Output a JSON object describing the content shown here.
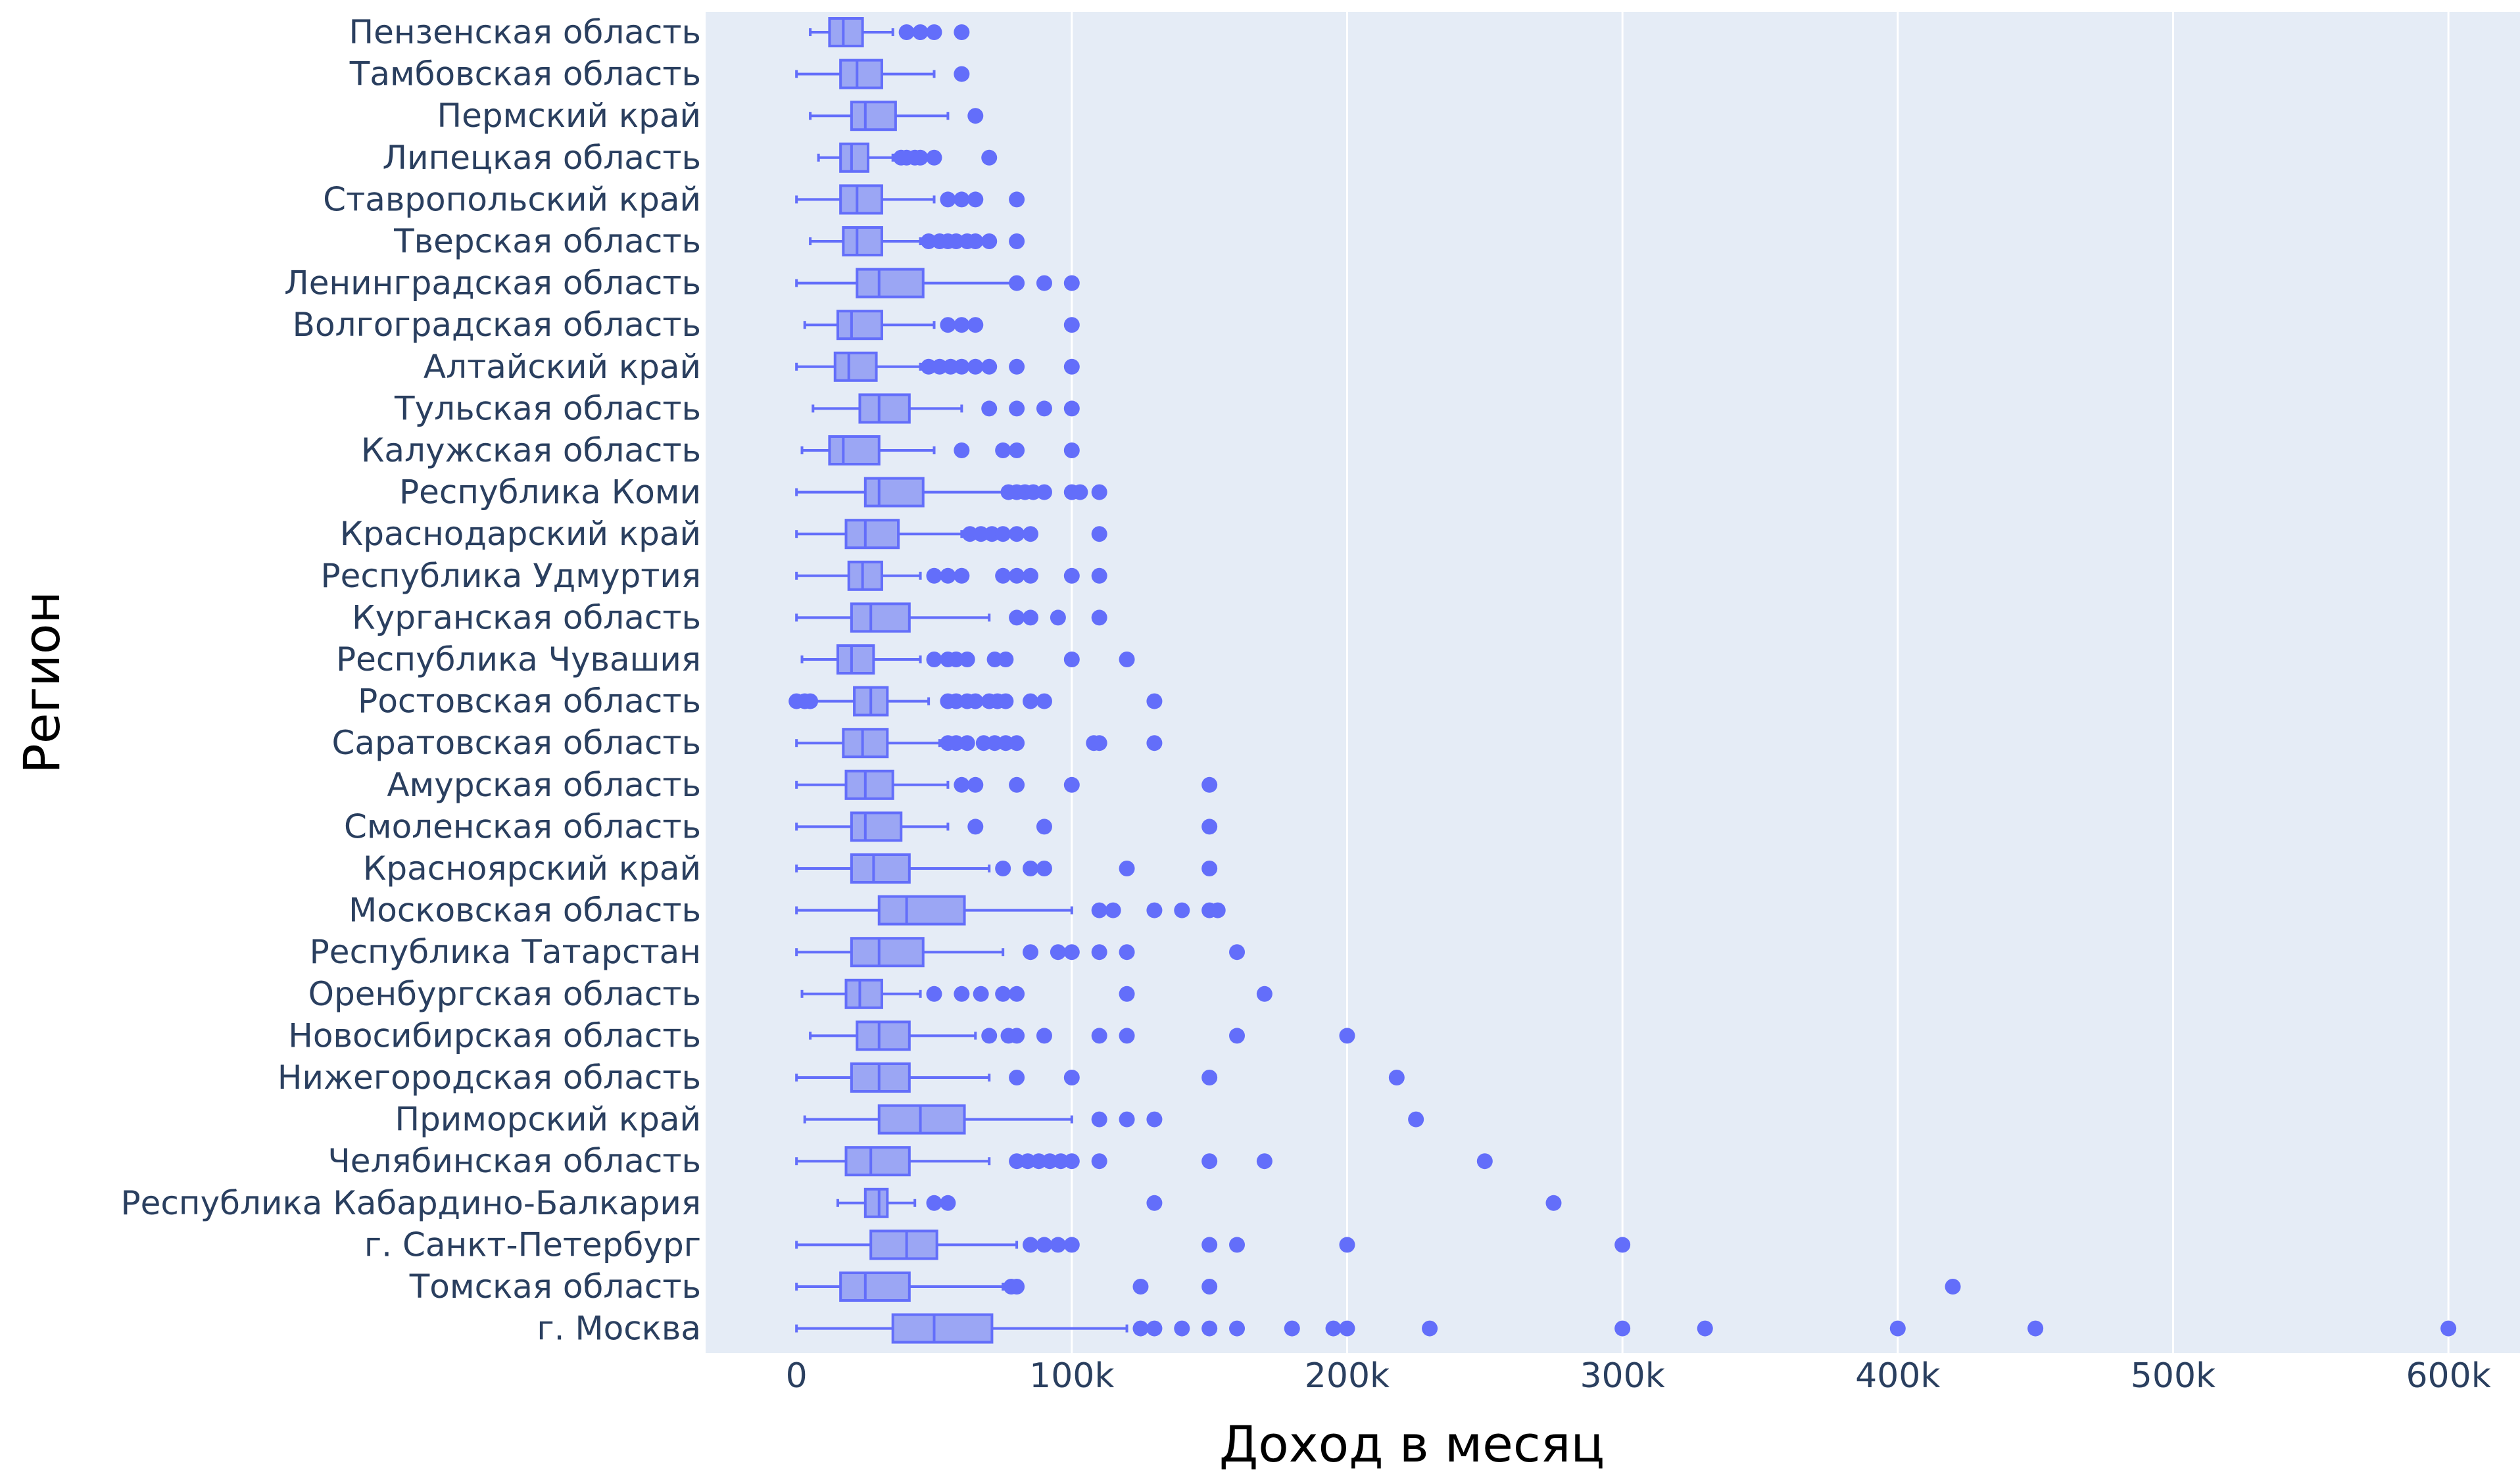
{
  "chart_data": {
    "type": "box",
    "orientation": "horizontal",
    "xlabel": "Доход в месяц",
    "ylabel": "Регион",
    "xlim": [
      -33000,
      626000
    ],
    "xticks": [
      {
        "value": 0,
        "label": "0"
      },
      {
        "value": 100000,
        "label": "100k"
      },
      {
        "value": 200000,
        "label": "200k"
      },
      {
        "value": 300000,
        "label": "300k"
      },
      {
        "value": 400000,
        "label": "400k"
      },
      {
        "value": 500000,
        "label": "500k"
      },
      {
        "value": 600000,
        "label": "600k"
      }
    ],
    "grid": "vertical",
    "colors": {
      "plot_bg": "#e5ecf6",
      "box_fill": "#9ba6f4",
      "box_line": "#636efa",
      "grid": "#ffffff",
      "text": "#2a3f5f"
    },
    "categories": [
      {
        "name": "Пензенская область",
        "lower": 5000,
        "q1": 12000,
        "median": 17000,
        "q3": 24000,
        "upper": 35000,
        "outliers": [
          40000,
          45000,
          50000,
          60000
        ]
      },
      {
        "name": "Тамбовская область",
        "lower": 0,
        "q1": 16000,
        "median": 22000,
        "q3": 31000,
        "upper": 50000,
        "outliers": [
          60000
        ]
      },
      {
        "name": "Пермский край",
        "lower": 5000,
        "q1": 20000,
        "median": 25000,
        "q3": 36000,
        "upper": 55000,
        "outliers": [
          65000
        ]
      },
      {
        "name": "Липецкая область",
        "lower": 8000,
        "q1": 16000,
        "median": 20000,
        "q3": 26000,
        "upper": 35000,
        "outliers": [
          38000,
          40000,
          43000,
          45000,
          50000,
          70000
        ]
      },
      {
        "name": "Ставропольский край",
        "lower": 0,
        "q1": 16000,
        "median": 22000,
        "q3": 31000,
        "upper": 50000,
        "outliers": [
          55000,
          60000,
          65000,
          80000
        ]
      },
      {
        "name": "Тверская область",
        "lower": 5000,
        "q1": 17000,
        "median": 22000,
        "q3": 31000,
        "upper": 45000,
        "outliers": [
          48000,
          52000,
          55000,
          58000,
          62000,
          65000,
          70000,
          80000
        ]
      },
      {
        "name": "Ленинградская область",
        "lower": 0,
        "q1": 22000,
        "median": 30000,
        "q3": 46000,
        "upper": 78000,
        "outliers": [
          80000,
          90000,
          100000
        ]
      },
      {
        "name": "Волгоградская область",
        "lower": 3000,
        "q1": 15000,
        "median": 20000,
        "q3": 31000,
        "upper": 50000,
        "outliers": [
          55000,
          60000,
          65000,
          100000
        ]
      },
      {
        "name": "Алтайский край",
        "lower": 0,
        "q1": 14000,
        "median": 19000,
        "q3": 29000,
        "upper": 45000,
        "outliers": [
          48000,
          52000,
          56000,
          60000,
          65000,
          70000,
          80000,
          100000
        ]
      },
      {
        "name": "Тульская область",
        "lower": 6000,
        "q1": 23000,
        "median": 30000,
        "q3": 41000,
        "upper": 60000,
        "outliers": [
          70000,
          80000,
          90000,
          100000
        ]
      },
      {
        "name": "Калужская область",
        "lower": 2000,
        "q1": 12000,
        "median": 17000,
        "q3": 30000,
        "upper": 50000,
        "outliers": [
          60000,
          75000,
          80000,
          100000
        ]
      },
      {
        "name": "Республика Коми",
        "lower": 0,
        "q1": 25000,
        "median": 30000,
        "q3": 46000,
        "upper": 75000,
        "outliers": [
          77000,
          80000,
          83000,
          86000,
          90000,
          100000,
          103000,
          110000
        ]
      },
      {
        "name": "Краснодарский край",
        "lower": 0,
        "q1": 18000,
        "median": 25000,
        "q3": 37000,
        "upper": 60000,
        "outliers": [
          63000,
          67000,
          71000,
          75000,
          80000,
          85000,
          110000
        ]
      },
      {
        "name": "Республика Удмуртия",
        "lower": 0,
        "q1": 19000,
        "median": 24000,
        "q3": 31000,
        "upper": 45000,
        "outliers": [
          50000,
          55000,
          60000,
          75000,
          80000,
          85000,
          100000,
          110000
        ]
      },
      {
        "name": "Курганская область",
        "lower": 0,
        "q1": 20000,
        "median": 27000,
        "q3": 41000,
        "upper": 70000,
        "outliers": [
          80000,
          85000,
          95000,
          110000
        ]
      },
      {
        "name": "Республика Чувашия",
        "lower": 2000,
        "q1": 15000,
        "median": 20000,
        "q3": 28000,
        "upper": 45000,
        "outliers": [
          50000,
          55000,
          58000,
          62000,
          72000,
          76000,
          100000,
          120000
        ]
      },
      {
        "name": "Ростовская область",
        "lower": 0,
        "q1": 21000,
        "median": 27000,
        "q3": 33000,
        "upper": 48000,
        "outliers": [
          0,
          3000,
          5000,
          55000,
          58000,
          62000,
          65000,
          70000,
          73000,
          76000,
          85000,
          90000,
          130000
        ]
      },
      {
        "name": "Саратовская область",
        "lower": 0,
        "q1": 17000,
        "median": 24000,
        "q3": 33000,
        "upper": 52000,
        "outliers": [
          55000,
          58000,
          62000,
          68000,
          72000,
          76000,
          80000,
          108000,
          110000,
          130000
        ]
      },
      {
        "name": "Амурская область",
        "lower": 0,
        "q1": 18000,
        "median": 25000,
        "q3": 35000,
        "upper": 55000,
        "outliers": [
          60000,
          65000,
          80000,
          100000,
          150000
        ]
      },
      {
        "name": "Смоленская область",
        "lower": 0,
        "q1": 20000,
        "median": 25000,
        "q3": 38000,
        "upper": 55000,
        "outliers": [
          65000,
          90000,
          150000
        ]
      },
      {
        "name": "Красноярский край",
        "lower": 0,
        "q1": 20000,
        "median": 28000,
        "q3": 41000,
        "upper": 70000,
        "outliers": [
          75000,
          85000,
          90000,
          120000,
          150000
        ]
      },
      {
        "name": "Московская область",
        "lower": 0,
        "q1": 30000,
        "median": 40000,
        "q3": 61000,
        "upper": 100000,
        "outliers": [
          110000,
          115000,
          130000,
          140000,
          150000,
          153000
        ]
      },
      {
        "name": "Республика Татарстан",
        "lower": 0,
        "q1": 20000,
        "median": 30000,
        "q3": 46000,
        "upper": 75000,
        "outliers": [
          85000,
          95000,
          100000,
          110000,
          120000,
          160000
        ]
      },
      {
        "name": "Оренбургская область",
        "lower": 2000,
        "q1": 18000,
        "median": 23000,
        "q3": 31000,
        "upper": 45000,
        "outliers": [
          50000,
          60000,
          67000,
          75000,
          80000,
          120000,
          170000
        ]
      },
      {
        "name": "Новосибирская область",
        "lower": 5000,
        "q1": 22000,
        "median": 30000,
        "q3": 41000,
        "upper": 65000,
        "outliers": [
          70000,
          77000,
          80000,
          90000,
          110000,
          120000,
          160000,
          200000
        ]
      },
      {
        "name": "Нижегородская область",
        "lower": 0,
        "q1": 20000,
        "median": 30000,
        "q3": 41000,
        "upper": 70000,
        "outliers": [
          80000,
          100000,
          150000,
          218000
        ]
      },
      {
        "name": "Приморский край",
        "lower": 3000,
        "q1": 30000,
        "median": 45000,
        "q3": 61000,
        "upper": 100000,
        "outliers": [
          110000,
          120000,
          130000,
          225000
        ]
      },
      {
        "name": "Челябинская область",
        "lower": 0,
        "q1": 18000,
        "median": 27000,
        "q3": 41000,
        "upper": 70000,
        "outliers": [
          80000,
          84000,
          88000,
          92000,
          96000,
          100000,
          110000,
          150000,
          170000,
          250000
        ]
      },
      {
        "name": "Республика Кабардино-Балкария",
        "lower": 15000,
        "q1": 25000,
        "median": 30000,
        "q3": 33000,
        "upper": 43000,
        "outliers": [
          50000,
          55000,
          130000,
          275000
        ]
      },
      {
        "name": "г. Санкт-Петербург",
        "lower": 0,
        "q1": 27000,
        "median": 40000,
        "q3": 51000,
        "upper": 80000,
        "outliers": [
          85000,
          90000,
          95000,
          100000,
          150000,
          160000,
          200000,
          300000
        ]
      },
      {
        "name": "Томская область",
        "lower": 0,
        "q1": 16000,
        "median": 25000,
        "q3": 41000,
        "upper": 75000,
        "outliers": [
          78000,
          80000,
          125000,
          150000,
          420000
        ]
      },
      {
        "name": "г. Москва",
        "lower": 0,
        "q1": 35000,
        "median": 50000,
        "q3": 71000,
        "upper": 120000,
        "outliers": [
          125000,
          130000,
          140000,
          150000,
          160000,
          180000,
          195000,
          200000,
          230000,
          300000,
          330000,
          400000,
          450000,
          600000
        ]
      }
    ]
  }
}
